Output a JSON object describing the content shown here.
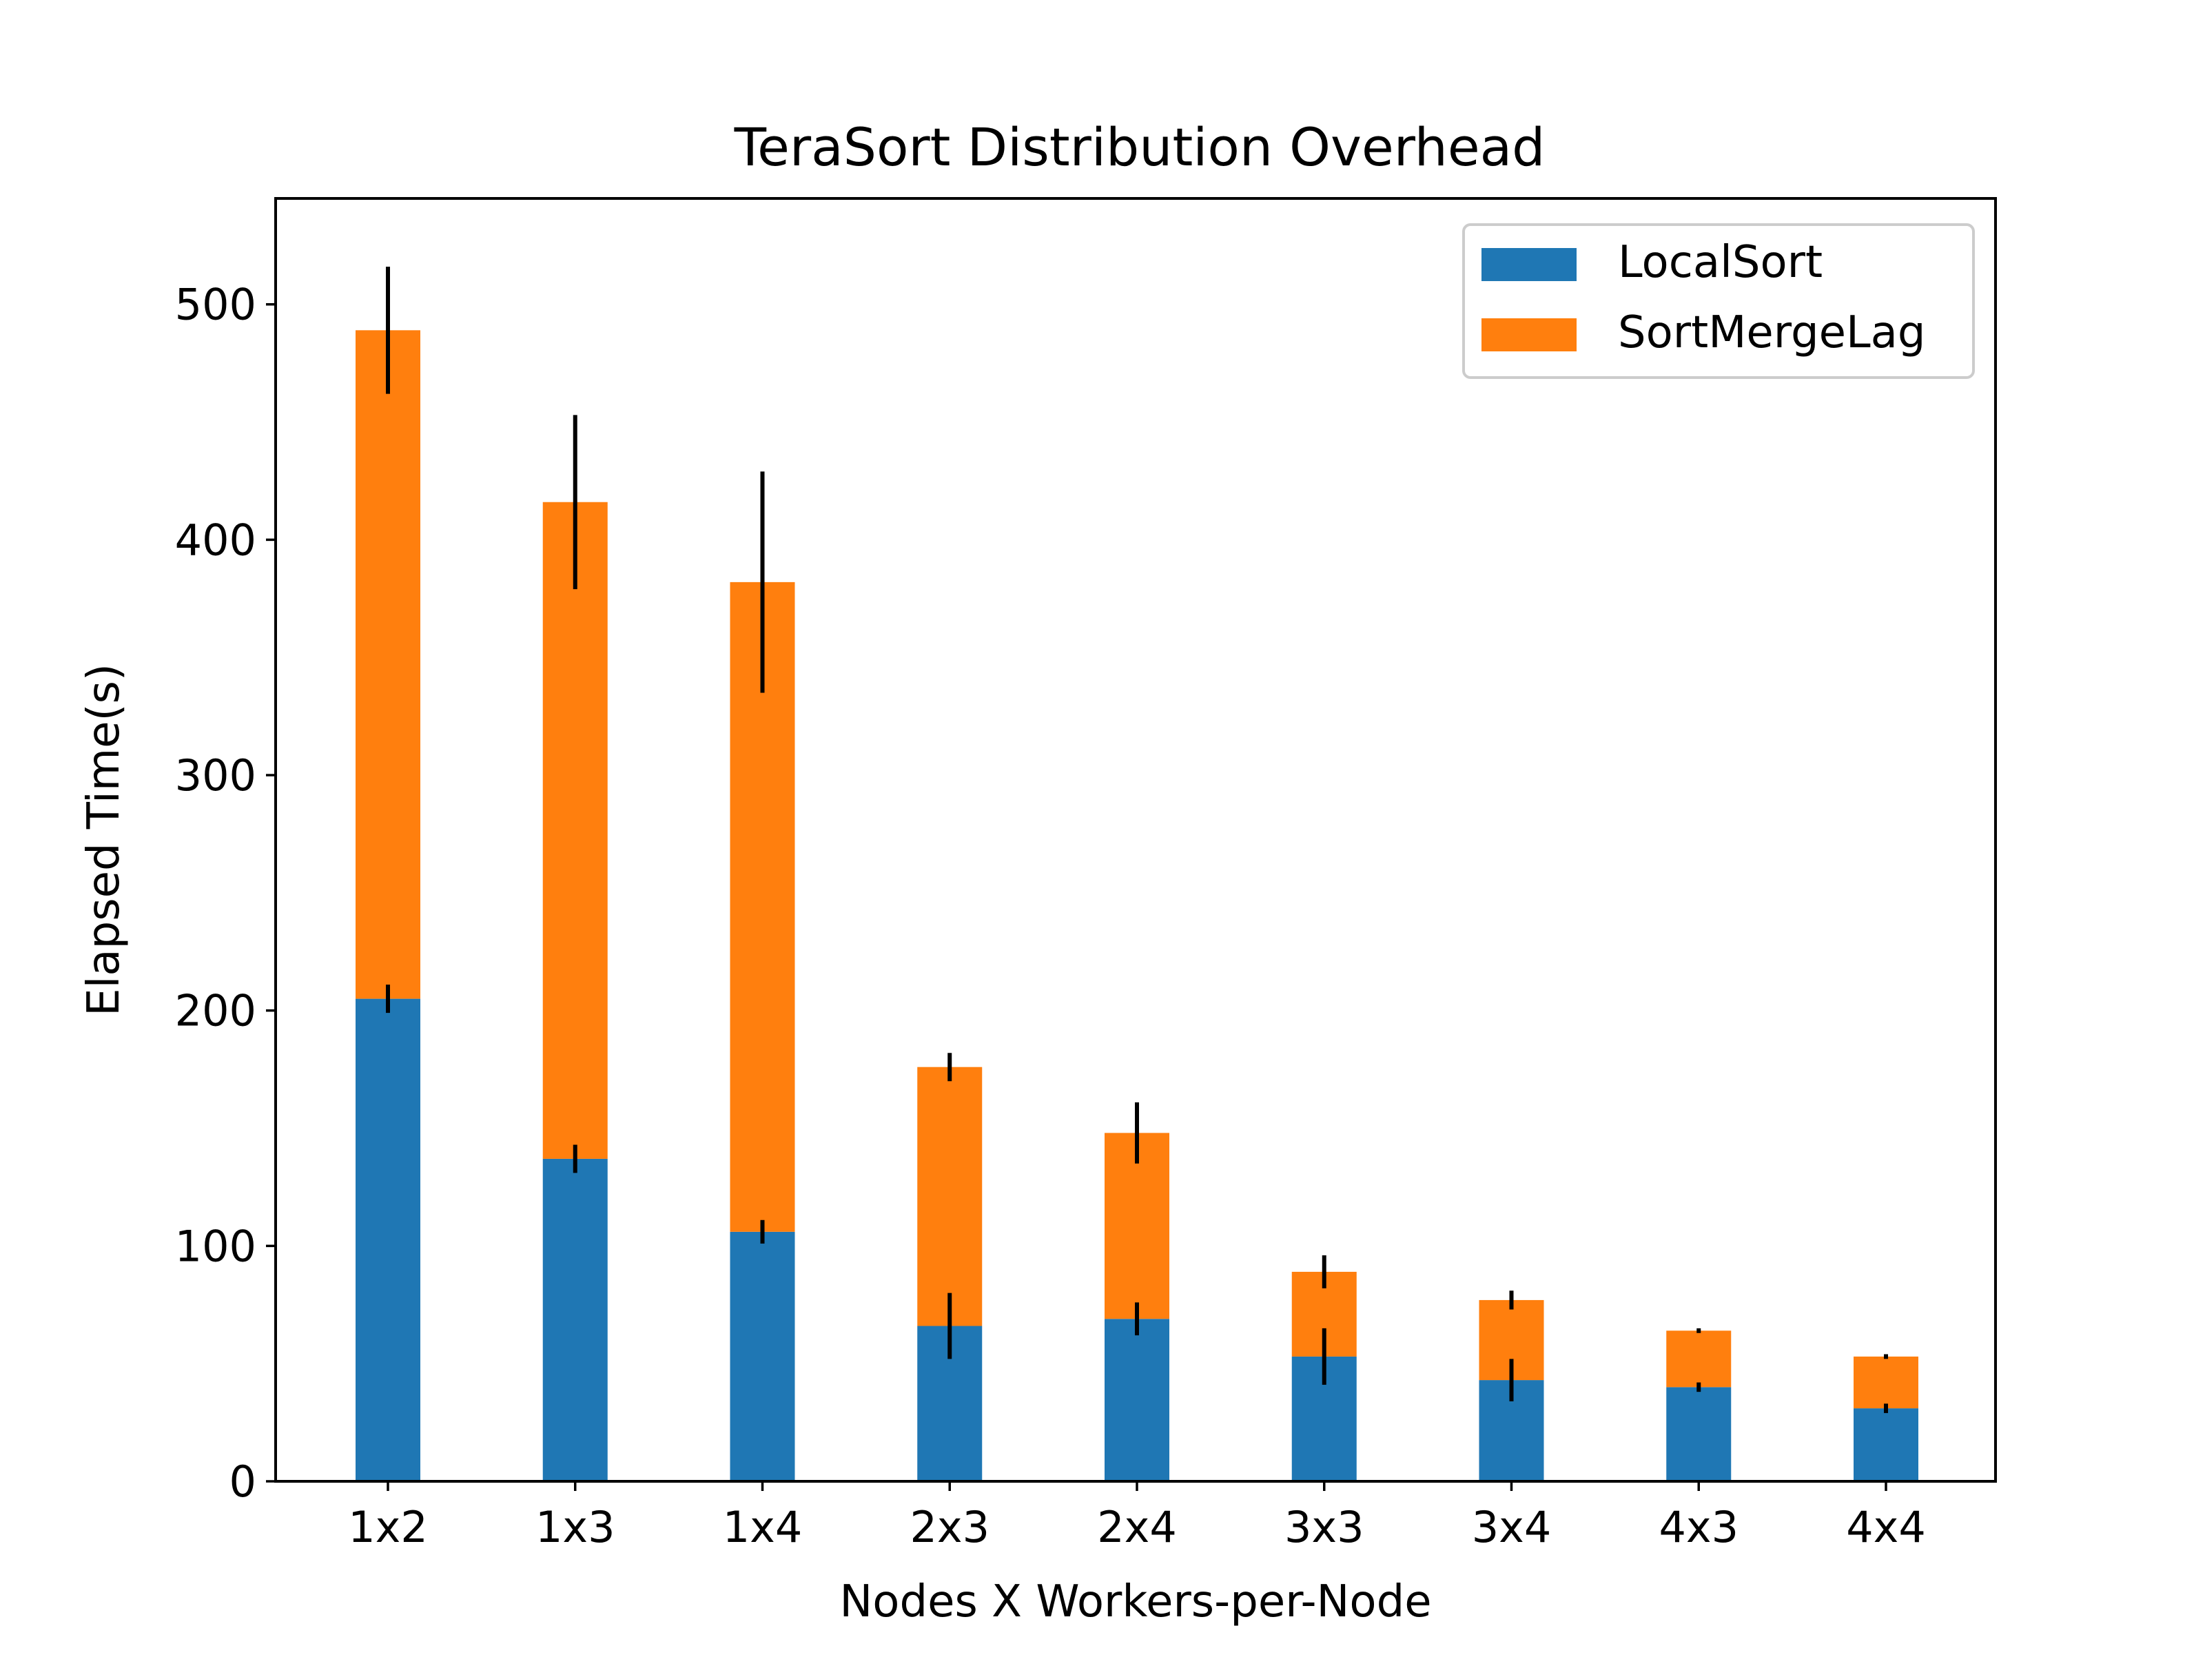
{
  "chart_data": {
    "type": "bar",
    "stacked": true,
    "title": "TeraSort Distribution Overhead",
    "xlabel": "Nodes X Workers-per-Node",
    "ylabel": "Elapsed Time(s)",
    "ylim": [
      0,
      545
    ],
    "yticks": [
      0,
      100,
      200,
      300,
      400,
      500
    ],
    "grid": false,
    "legend_position": "top-right",
    "categories": [
      "1x2",
      "1x3",
      "1x4",
      "2x3",
      "2x4",
      "3x3",
      "3x4",
      "4x3",
      "4x4"
    ],
    "series": [
      {
        "name": "LocalSort",
        "color": "#1f77b4",
        "values": [
          205,
          137,
          106,
          66,
          69,
          53,
          43,
          40,
          31
        ],
        "error": [
          6,
          6,
          5,
          14,
          7,
          12,
          9,
          2,
          2
        ]
      },
      {
        "name": "SortMergeLag",
        "color": "#ff7f0e",
        "values": [
          284,
          279,
          276,
          110,
          79,
          36,
          34,
          24,
          22
        ],
        "error": [
          27,
          37,
          47,
          6,
          13,
          7,
          4,
          1,
          1
        ]
      }
    ]
  }
}
